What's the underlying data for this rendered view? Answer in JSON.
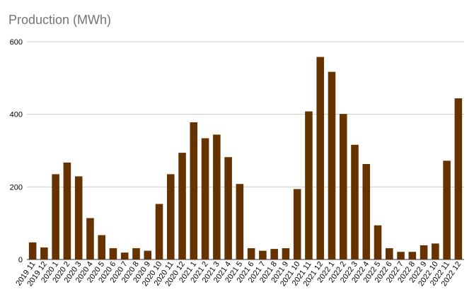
{
  "chart_data": {
    "type": "bar",
    "title": "Production (MWh)",
    "xlabel": "",
    "ylabel": "",
    "ylim": [
      0,
      600
    ],
    "yticks": [
      0,
      200,
      400,
      600
    ],
    "grid": true,
    "legend": "none",
    "bar_color": "#663300",
    "categories": [
      "2019 11",
      "2019 12",
      "2020 1",
      "2020 2",
      "2020 3",
      "2020 4",
      "2020 5",
      "2020 6",
      "2020 7",
      "2020 8",
      "2020 9",
      "2020 10",
      "2020 11",
      "2020 12",
      "2021 1",
      "2021 2",
      "2021 3",
      "2021 4",
      "2021 5",
      "2021 6",
      "2021 7",
      "2021 8",
      "2021 9",
      "2021 10",
      "2021 11",
      "2021 12",
      "2022 1",
      "2022 2",
      "2022 3",
      "2022 4",
      "2022 5",
      "2022 6",
      "2022 7",
      "2022 8",
      "2022 9",
      "2022 10",
      "2022 11",
      "2022 12"
    ],
    "values": [
      47,
      33,
      235,
      267,
      229,
      114,
      67,
      31,
      19,
      31,
      24,
      153,
      235,
      294,
      378,
      334,
      344,
      282,
      208,
      31,
      24,
      29,
      31,
      194,
      408,
      558,
      517,
      401,
      316,
      263,
      94,
      31,
      21,
      21,
      39,
      44,
      272,
      444
    ]
  }
}
